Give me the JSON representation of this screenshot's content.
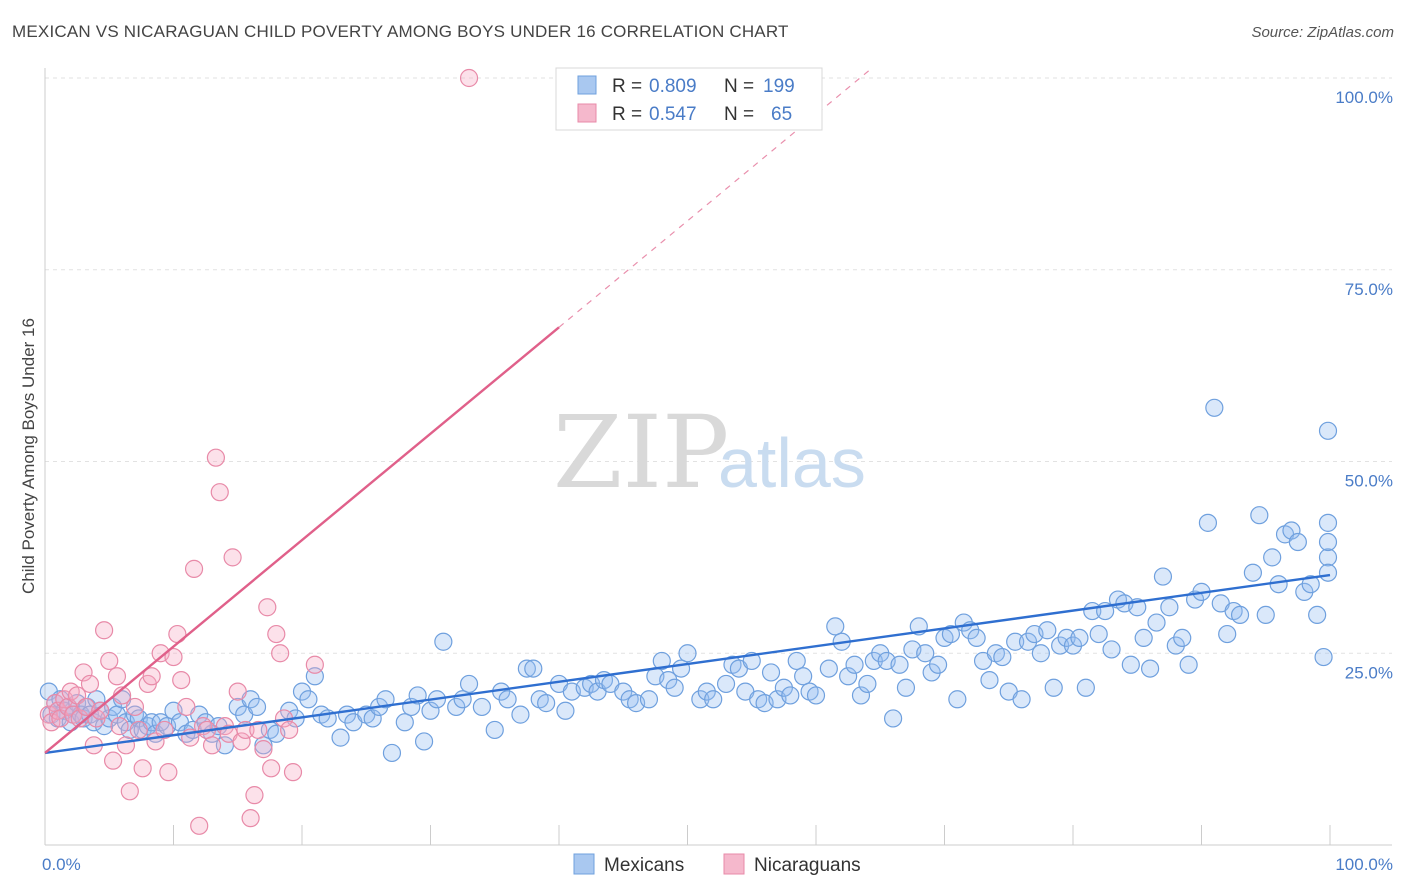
{
  "header": {
    "title": "MEXICAN VS NICARAGUAN CHILD POVERTY AMONG BOYS UNDER 16 CORRELATION CHART",
    "source": "Source: ZipAtlas.com"
  },
  "watermark": {
    "zip": "ZIP",
    "atlas": "atlas"
  },
  "legend": {
    "rows": [
      {
        "r_label": "R =",
        "r_value": "0.809",
        "n_label": "N =",
        "n_value": "199",
        "color": "#a9c8f0"
      },
      {
        "r_label": "R =",
        "r_value": "0.547",
        "n_label": "N =",
        "n_value": "65",
        "color": "#f5b8cc"
      }
    ]
  },
  "bottom_legend": [
    {
      "label": "Mexicans",
      "color": "#a9c8f0"
    },
    {
      "label": "Nicaraguans",
      "color": "#f5b8cc"
    }
  ],
  "colors": {
    "mexicans_fill": "rgba(150,190,240,0.35)",
    "mexicans_stroke": "#6fa0de",
    "mexicans_line": "#2f6fd0",
    "nicaraguans_fill": "rgba(245,170,195,0.35)",
    "nicaraguans_stroke": "#e88aa8",
    "nicaraguans_line": "#e0608a",
    "tick_text": "#4a7cc7"
  },
  "chart_data": {
    "type": "scatter",
    "title": "MEXICAN VS NICARAGUAN CHILD POVERTY AMONG BOYS UNDER 16 CORRELATION CHART",
    "xlabel": "",
    "ylabel": "Child Poverty Among Boys Under 16",
    "xlim": [
      0,
      100
    ],
    "ylim": [
      0,
      100
    ],
    "x_tick_labels": [
      "0.0%",
      "100.0%"
    ],
    "y_ticks": [
      25,
      50,
      75,
      100
    ],
    "y_tick_labels": [
      "25.0%",
      "50.0%",
      "75.0%",
      "100.0%"
    ],
    "grid": true,
    "legend_position": "top-center",
    "series": [
      {
        "name": "Mexicans",
        "trend": {
          "x": [
            0,
            100
          ],
          "y": [
            12.0,
            35.2
          ]
        },
        "points": [
          [
            0.3,
            20
          ],
          [
            0.5,
            17
          ],
          [
            0.8,
            18.5
          ],
          [
            1,
            16.5
          ],
          [
            1.2,
            19
          ],
          [
            1.5,
            17.5
          ],
          [
            1.8,
            18
          ],
          [
            2,
            16
          ],
          [
            2.2,
            17
          ],
          [
            2.5,
            18.5
          ],
          [
            2.8,
            17
          ],
          [
            3,
            16.5
          ],
          [
            3.3,
            18
          ],
          [
            3.5,
            17
          ],
          [
            3.8,
            16
          ],
          [
            4,
            19
          ],
          [
            4.3,
            17.5
          ],
          [
            4.6,
            15.5
          ],
          [
            5,
            16.5
          ],
          [
            5.3,
            18
          ],
          [
            5.6,
            17
          ],
          [
            6,
            19
          ],
          [
            6.3,
            16
          ],
          [
            6.6,
            15
          ],
          [
            7,
            17
          ],
          [
            7.3,
            16.5
          ],
          [
            7.6,
            15
          ],
          [
            8,
            15.5
          ],
          [
            8.3,
            16
          ],
          [
            8.6,
            14.5
          ],
          [
            9,
            16
          ],
          [
            9.5,
            15.5
          ],
          [
            10,
            17.5
          ],
          [
            10.5,
            16
          ],
          [
            11,
            14.5
          ],
          [
            11.5,
            15
          ],
          [
            12,
            17
          ],
          [
            12.5,
            16
          ],
          [
            13,
            14.5
          ],
          [
            13.5,
            15.5
          ],
          [
            14,
            13
          ],
          [
            15,
            18
          ],
          [
            15.5,
            17
          ],
          [
            16,
            19
          ],
          [
            16.5,
            18
          ],
          [
            17,
            13
          ],
          [
            17.5,
            15
          ],
          [
            18,
            14.5
          ],
          [
            19,
            17.5
          ],
          [
            19.5,
            16.5
          ],
          [
            20,
            20
          ],
          [
            20.5,
            19
          ],
          [
            21,
            22
          ],
          [
            21.5,
            17
          ],
          [
            22,
            16.5
          ],
          [
            23,
            14
          ],
          [
            23.5,
            17
          ],
          [
            24,
            16
          ],
          [
            25,
            17
          ],
          [
            25.5,
            16.5
          ],
          [
            26,
            18
          ],
          [
            26.5,
            19
          ],
          [
            27,
            12
          ],
          [
            28,
            16
          ],
          [
            28.5,
            18
          ],
          [
            29,
            19.5
          ],
          [
            29.5,
            13.5
          ],
          [
            30,
            17.5
          ],
          [
            30.5,
            19
          ],
          [
            31,
            26.5
          ],
          [
            32,
            18
          ],
          [
            32.5,
            19
          ],
          [
            33,
            21
          ],
          [
            34,
            18
          ],
          [
            35,
            15
          ],
          [
            35.5,
            20
          ],
          [
            36,
            19
          ],
          [
            37,
            17
          ],
          [
            37.5,
            23
          ],
          [
            38,
            23
          ],
          [
            38.5,
            19
          ],
          [
            39,
            18.5
          ],
          [
            40,
            21
          ],
          [
            40.5,
            17.5
          ],
          [
            41,
            20
          ],
          [
            42,
            20.5
          ],
          [
            42.5,
            21
          ],
          [
            43,
            20
          ],
          [
            43.5,
            21.5
          ],
          [
            44,
            21
          ],
          [
            45,
            20
          ],
          [
            45.5,
            19
          ],
          [
            46,
            18.5
          ],
          [
            47,
            19
          ],
          [
            47.5,
            22
          ],
          [
            48,
            24
          ],
          [
            48.5,
            21.5
          ],
          [
            49,
            20.5
          ],
          [
            49.5,
            23
          ],
          [
            50,
            25
          ],
          [
            51,
            19
          ],
          [
            51.5,
            20
          ],
          [
            52,
            19
          ],
          [
            53,
            21
          ],
          [
            53.5,
            23.5
          ],
          [
            54,
            23
          ],
          [
            54.5,
            20
          ],
          [
            55,
            24
          ],
          [
            55.5,
            19
          ],
          [
            56,
            18.5
          ],
          [
            56.5,
            22.5
          ],
          [
            57,
            19
          ],
          [
            57.5,
            20.5
          ],
          [
            58,
            19.5
          ],
          [
            58.5,
            24
          ],
          [
            59,
            22
          ],
          [
            59.5,
            20
          ],
          [
            60,
            19.5
          ],
          [
            61,
            23
          ],
          [
            61.5,
            28.5
          ],
          [
            62,
            26.5
          ],
          [
            62.5,
            22
          ],
          [
            63,
            23.5
          ],
          [
            63.5,
            19.5
          ],
          [
            64,
            21
          ],
          [
            64.5,
            24
          ],
          [
            65,
            25
          ],
          [
            65.5,
            24
          ],
          [
            66,
            16.5
          ],
          [
            66.5,
            23.5
          ],
          [
            67,
            20.5
          ],
          [
            67.5,
            25.5
          ],
          [
            68,
            28.5
          ],
          [
            68.5,
            25
          ],
          [
            69,
            22.5
          ],
          [
            69.5,
            23.5
          ],
          [
            70,
            27
          ],
          [
            70.5,
            27.5
          ],
          [
            71,
            19
          ],
          [
            71.5,
            29
          ],
          [
            72,
            28
          ],
          [
            72.5,
            27
          ],
          [
            73,
            24
          ],
          [
            73.5,
            21.5
          ],
          [
            74,
            25
          ],
          [
            74.5,
            24.5
          ],
          [
            75,
            20
          ],
          [
            75.5,
            26.5
          ],
          [
            76,
            19
          ],
          [
            76.5,
            26.5
          ],
          [
            77,
            27.5
          ],
          [
            77.5,
            25
          ],
          [
            78,
            28
          ],
          [
            78.5,
            20.5
          ],
          [
            79,
            26
          ],
          [
            79.5,
            27
          ],
          [
            80,
            26
          ],
          [
            80.5,
            27
          ],
          [
            81,
            20.5
          ],
          [
            81.5,
            30.5
          ],
          [
            82,
            27.5
          ],
          [
            82.5,
            30.5
          ],
          [
            83,
            25.5
          ],
          [
            83.5,
            32
          ],
          [
            84,
            31.5
          ],
          [
            84.5,
            23.5
          ],
          [
            85,
            31
          ],
          [
            85.5,
            27
          ],
          [
            86,
            23
          ],
          [
            86.5,
            29
          ],
          [
            87,
            35
          ],
          [
            87.5,
            31
          ],
          [
            88,
            26
          ],
          [
            88.5,
            27
          ],
          [
            89,
            23.5
          ],
          [
            89.5,
            32
          ],
          [
            90,
            33
          ],
          [
            90.5,
            42
          ],
          [
            91,
            57
          ],
          [
            91.5,
            31.5
          ],
          [
            92,
            27.5
          ],
          [
            92.5,
            30.5
          ],
          [
            93,
            30
          ],
          [
            94,
            35.5
          ],
          [
            94.5,
            43
          ],
          [
            95,
            30
          ],
          [
            95.5,
            37.5
          ],
          [
            96,
            34
          ],
          [
            96.5,
            40.5
          ],
          [
            97,
            41
          ],
          [
            97.5,
            39.5
          ],
          [
            98,
            33
          ],
          [
            98.5,
            34
          ],
          [
            99,
            30
          ],
          [
            99.5,
            24.5
          ],
          [
            100,
            37.5
          ],
          [
            100.5,
            35.5
          ],
          [
            101.5,
            39.5
          ],
          [
            102,
            42
          ],
          [
            102.5,
            54
          ]
        ]
      },
      {
        "name": "Nicaraguans",
        "trend": {
          "x": [
            0,
            40
          ],
          "y": [
            12.0,
            67.5
          ]
        },
        "points": [
          [
            0.3,
            17
          ],
          [
            0.5,
            16
          ],
          [
            0.8,
            18.5
          ],
          [
            1,
            17.5
          ],
          [
            1.2,
            16.5
          ],
          [
            1.5,
            19
          ],
          [
            1.8,
            18
          ],
          [
            2,
            20
          ],
          [
            2.2,
            17
          ],
          [
            2.5,
            19.5
          ],
          [
            2.7,
            16.5
          ],
          [
            3,
            22.5
          ],
          [
            3.2,
            18
          ],
          [
            3.5,
            21
          ],
          [
            3.8,
            13
          ],
          [
            4,
            16.5
          ],
          [
            4.3,
            17.5
          ],
          [
            4.6,
            28
          ],
          [
            5,
            24
          ],
          [
            5.3,
            11
          ],
          [
            5.6,
            22
          ],
          [
            6,
            19.5
          ],
          [
            6.3,
            13
          ],
          [
            6.6,
            7
          ],
          [
            7,
            18
          ],
          [
            7.3,
            15
          ],
          [
            7.6,
            10
          ],
          [
            8,
            21
          ],
          [
            8.3,
            22
          ],
          [
            8.6,
            13.5
          ],
          [
            9,
            25
          ],
          [
            9.3,
            15
          ],
          [
            9.6,
            9.5
          ],
          [
            10,
            24.5
          ],
          [
            10.3,
            27.5
          ],
          [
            10.6,
            21.5
          ],
          [
            11,
            18
          ],
          [
            11.3,
            14
          ],
          [
            11.6,
            36
          ],
          [
            12,
            2.5
          ],
          [
            12.3,
            15.5
          ],
          [
            12.6,
            15
          ],
          [
            13,
            13
          ],
          [
            13.3,
            50.5
          ],
          [
            13.6,
            46
          ],
          [
            14,
            15.5
          ],
          [
            14.3,
            14.5
          ],
          [
            14.6,
            37.5
          ],
          [
            15,
            20
          ],
          [
            15.3,
            13.5
          ],
          [
            15.6,
            15
          ],
          [
            16,
            3.5
          ],
          [
            16.3,
            6.5
          ],
          [
            16.6,
            15
          ],
          [
            17,
            12.5
          ],
          [
            17.3,
            31
          ],
          [
            17.6,
            10
          ],
          [
            18,
            27.5
          ],
          [
            18.3,
            25
          ],
          [
            18.6,
            16.5
          ],
          [
            19,
            15
          ],
          [
            19.3,
            9.5
          ],
          [
            21,
            23.5
          ],
          [
            33,
            100
          ],
          [
            5.8,
            15.5
          ]
        ]
      }
    ]
  }
}
